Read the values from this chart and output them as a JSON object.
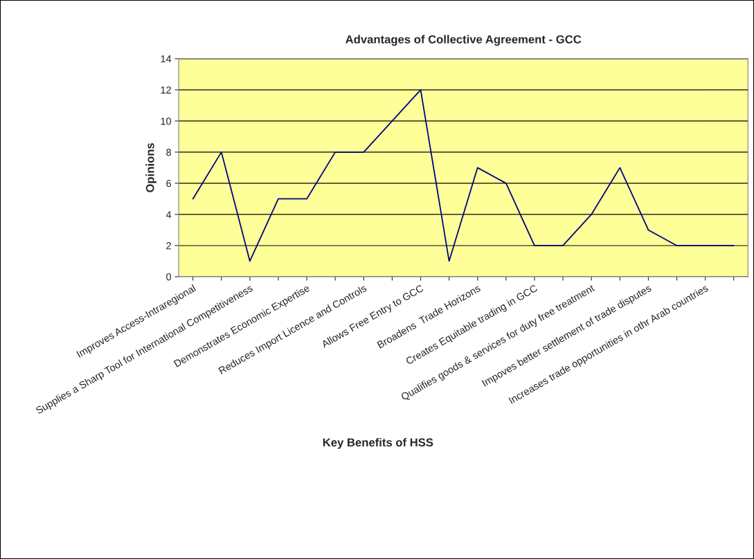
{
  "chart_data": {
    "type": "line",
    "title": "Advantages of Collective Agreement - GCC",
    "xlabel": "Key Benefits of HSS",
    "ylabel": "Opinions",
    "categories": [
      "Improves Access-Intraregional",
      null,
      "Supplies a Sharp Tool for International Competitiveness",
      null,
      "Demonstrates Economic Expertise",
      null,
      "Reduces Import Licence and Controls",
      null,
      "Allows Free Entry to GCC",
      null,
      "Broadens  Trade Horizons",
      null,
      "Creates Equitable trading in GCC",
      null,
      "Qualifies goods & services for duty free treatment",
      null,
      "Impoves better settlement of trade disputes",
      null,
      "Increases trade opportunities in othr Arab countries",
      null
    ],
    "series": [
      {
        "color": "#000080",
        "values": [
          5,
          8,
          1,
          5,
          5,
          8,
          8,
          10,
          12,
          1,
          7,
          6,
          2,
          2,
          4,
          7,
          3,
          2,
          2,
          2
        ]
      }
    ],
    "ylim": [
      0,
      14
    ],
    "yticks": [
      0,
      2,
      4,
      6,
      8,
      10,
      12,
      14
    ],
    "grid": "y",
    "marker": "none",
    "line_style": "solid"
  }
}
